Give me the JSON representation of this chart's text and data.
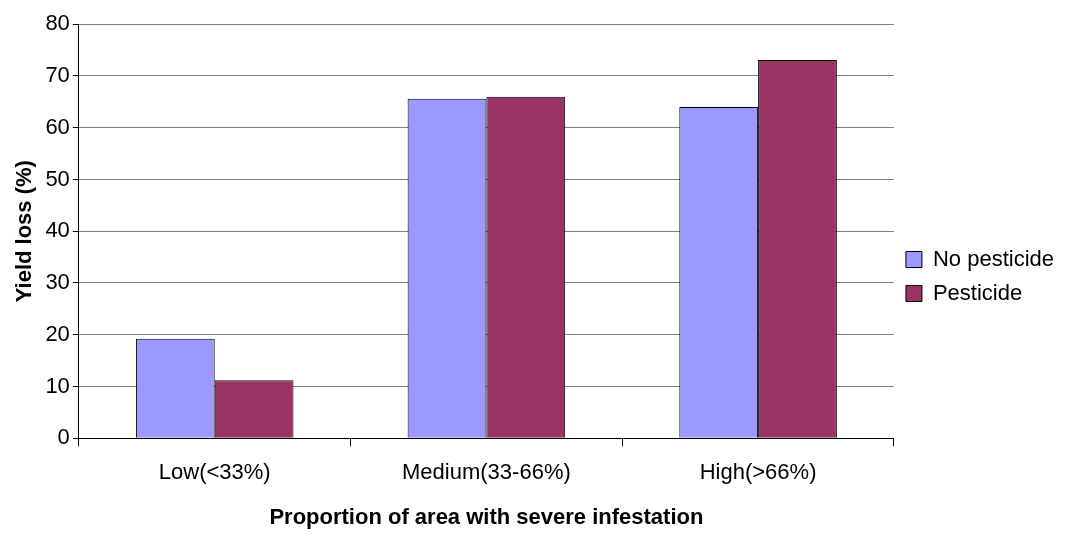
{
  "chart_data": {
    "type": "bar",
    "xlabel": "Proportion of area with severe infestation",
    "ylabel": "Yield loss (%)",
    "categories": [
      "Low(<33%)",
      "Medium(33-66%)",
      "High(>66%)"
    ],
    "series": [
      {
        "name": "No pesticide",
        "color": "#9999ff",
        "values": [
          19.2,
          65.6,
          64.0
        ]
      },
      {
        "name": "Pesticide",
        "color": "#993366",
        "values": [
          11.2,
          66.0,
          73.1
        ]
      }
    ],
    "ylim": [
      0,
      80
    ],
    "yticks": [
      0,
      10,
      20,
      30,
      40,
      50,
      60,
      70,
      80
    ],
    "grid": "y",
    "legend": "right"
  }
}
